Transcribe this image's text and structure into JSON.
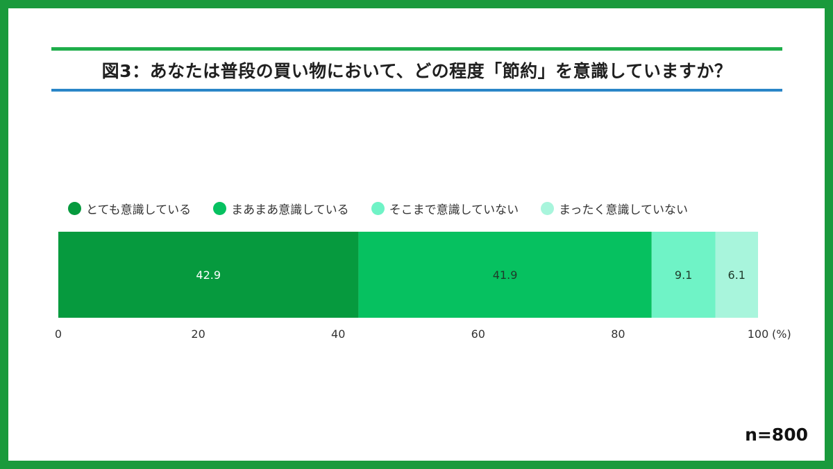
{
  "title": "図3：あなたは普段の買い物において、どの程度「節約」を意識していますか？",
  "sample_size": "n=800",
  "colors": {
    "frame": "#1a9a3c",
    "title_rule_top": "#1fae4b",
    "title_rule_bottom": "#2a86c8"
  },
  "chart_data": {
    "type": "bar",
    "orientation": "horizontal-stacked",
    "categories": [
      ""
    ],
    "series": [
      {
        "name": "とても意識している",
        "values": [
          42.9
        ],
        "color": "#069a3e",
        "label_color": "#ffffff"
      },
      {
        "name": "まあまあ意識している",
        "values": [
          41.9
        ],
        "color": "#06c160",
        "label_color": "#1f3a2a"
      },
      {
        "name": "そこまで意識していない",
        "values": [
          9.1
        ],
        "color": "#6ff3c6",
        "label_color": "#1f3a2a"
      },
      {
        "name": "まったく意識していない",
        "values": [
          6.1
        ],
        "color": "#a8f5dc",
        "label_color": "#1f3a2a"
      }
    ],
    "xlim": [
      0,
      100
    ],
    "xticks": [
      0,
      20,
      40,
      60,
      80,
      100
    ],
    "x_unit": "(%)",
    "legend_position": "top-left",
    "grid": false
  }
}
